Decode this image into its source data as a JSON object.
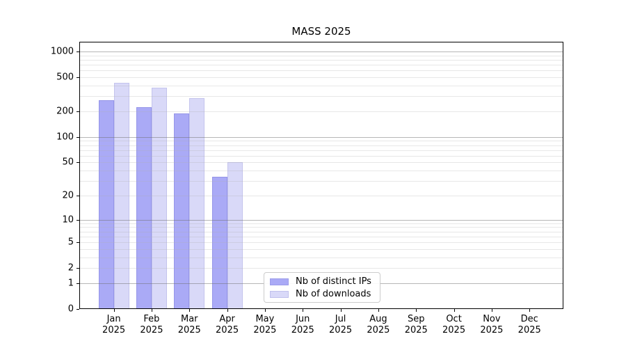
{
  "chart_data": {
    "type": "bar",
    "title": "MASS 2025",
    "categories": [
      "Jan",
      "Feb",
      "Mar",
      "Apr",
      "May",
      "Jun",
      "Jul",
      "Aug",
      "Sep",
      "Oct",
      "Nov",
      "Dec"
    ],
    "x_tick_year_line": "2025",
    "series": [
      {
        "name": "Nb of distinct IPs",
        "color": "#aaaaf6",
        "values": [
          270,
          222,
          188,
          34,
          0,
          0,
          0,
          0,
          0,
          0,
          0,
          0
        ]
      },
      {
        "name": "Nb of downloads",
        "color": "#d9d9f8",
        "values": [
          430,
          375,
          288,
          50,
          0,
          0,
          0,
          0,
          0,
          0,
          0,
          0
        ]
      }
    ],
    "xlabel": "",
    "ylabel": "",
    "yscale": "log1p",
    "ylim": [
      0,
      1300
    ],
    "ytick_values": [
      0,
      1,
      2,
      5,
      10,
      20,
      50,
      100,
      200,
      500,
      1000
    ],
    "ytick_labels": [
      "0",
      "1",
      "2",
      "5",
      "10",
      "20",
      "50",
      "100",
      "200",
      "500",
      "1000"
    ],
    "grid": {
      "enabled": true,
      "major_gridlines": [
        1,
        10,
        100,
        1000
      ],
      "minor_gridlines": "multiples 2-9 of each decade",
      "major_color": "rgba(110,110,110,0.50)",
      "minor_color": "rgba(175,175,175,0.30)",
      "drawn_above_bars": true
    },
    "legend": {
      "position": "lower-center",
      "framed": true
    }
  }
}
